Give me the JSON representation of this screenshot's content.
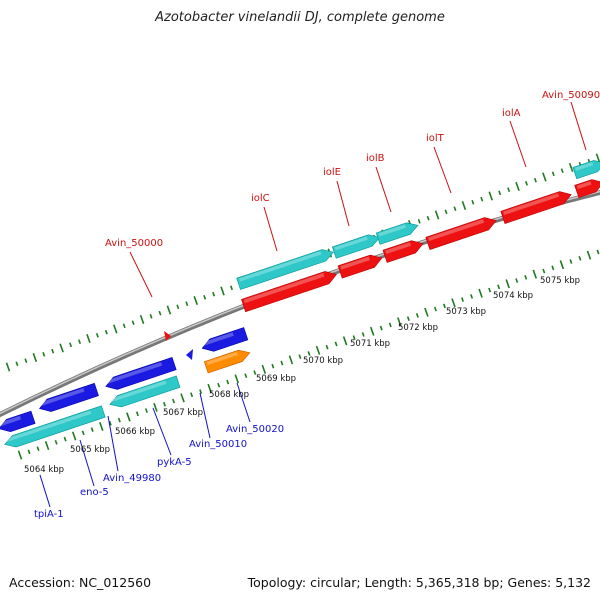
{
  "title": "Azotobacter vinelandii DJ, complete genome",
  "footer": {
    "accession": "Accession: NC_012560",
    "topology": "Topology: circular; Length: 5,365,318 bp; Genes: 5,132"
  },
  "colors": {
    "cds_forward": "#ee1111",
    "cds_reverse": "#1a1ae0",
    "gene_forward": "#2ec8c8",
    "gene_reverse": "#2ec8c8",
    "rna": "#ff8c00",
    "label_forward": "#cc1111",
    "label_reverse": "#1111cc",
    "tick": "#1f7a1f",
    "backbone": "#888888"
  },
  "scale": {
    "unit": "kbp",
    "labels": [
      "5064 kbp",
      "5065 kbp",
      "5066 kbp",
      "5067 kbp",
      "5068 kbp",
      "5069 kbp",
      "5070 kbp",
      "5071 kbp",
      "5072 kbp",
      "5073 kbp",
      "5074 kbp",
      "5075 kbp"
    ]
  },
  "genes_forward": [
    {
      "name": "Avin_50000"
    },
    {
      "name": "iolC"
    },
    {
      "name": "iolE"
    },
    {
      "name": "iolB"
    },
    {
      "name": "iolT"
    },
    {
      "name": "iolA"
    },
    {
      "name": "Avin_50090"
    }
  ],
  "genes_reverse": [
    {
      "name": "tpiA-1"
    },
    {
      "name": "eno-5"
    },
    {
      "name": "Avin_49980"
    },
    {
      "name": "pykA-5"
    },
    {
      "name": "Avin_50010"
    },
    {
      "name": "Avin_50020"
    }
  ]
}
